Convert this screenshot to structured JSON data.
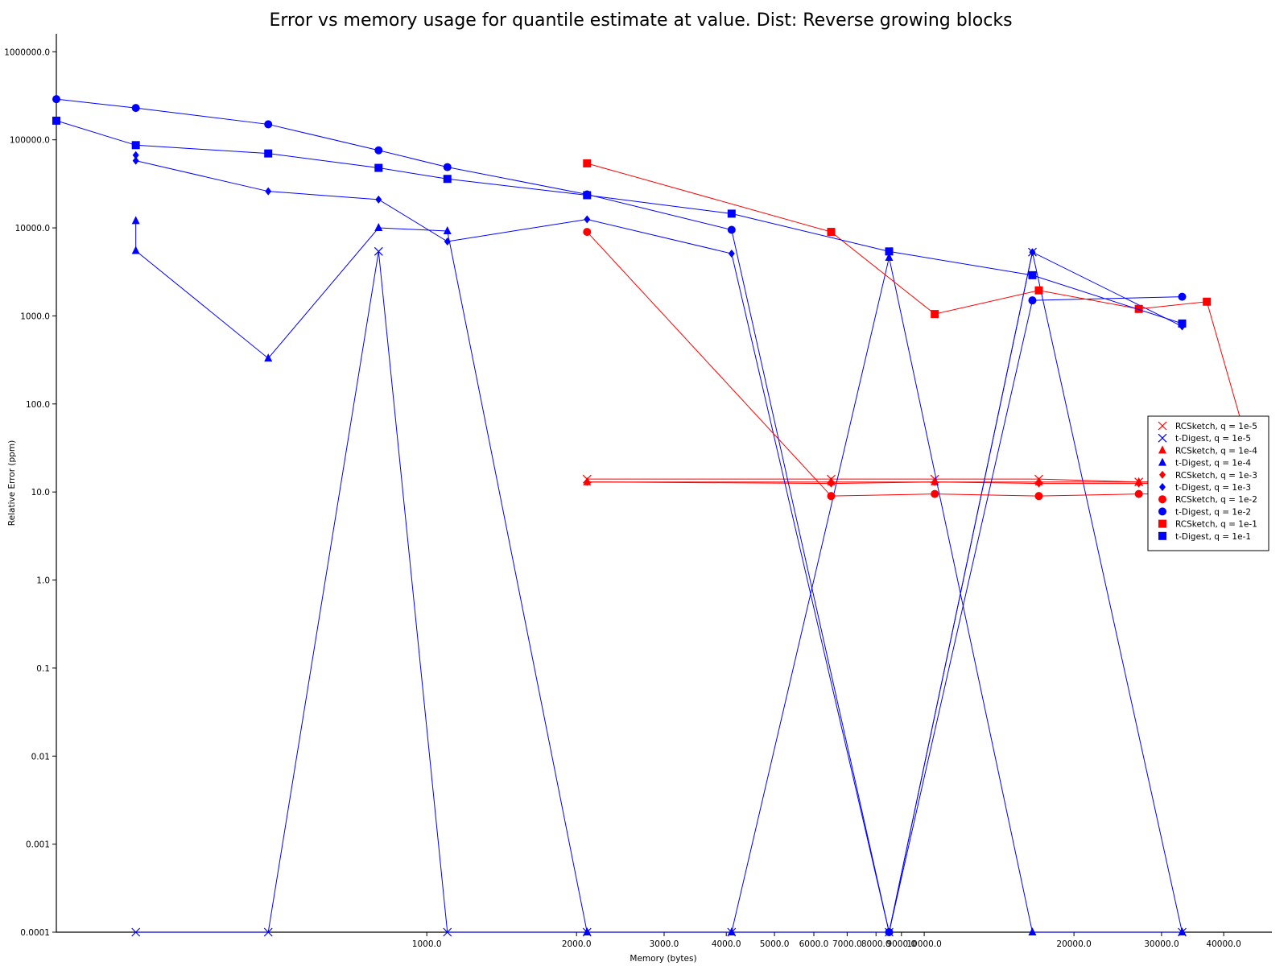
{
  "chart_data": {
    "type": "line",
    "title": "Error vs memory usage for quantile estimate at value. Dist: Reverse growing blocks",
    "xlabel": "Memory (bytes)",
    "ylabel": "Relative Error (ppm)",
    "xscale": "log",
    "yscale": "log",
    "xlim": [
      180,
      50000
    ],
    "ylim": [
      0.0001,
      1600000
    ],
    "x_ticks": [
      {
        "value": 1000,
        "label": "1000.0"
      },
      {
        "value": 2000,
        "label": "2000.0"
      },
      {
        "value": 3000,
        "label": "3000.0"
      },
      {
        "value": 4000,
        "label": "4000.0"
      },
      {
        "value": 5000,
        "label": "5000.0"
      },
      {
        "value": 6000,
        "label": "6000.0"
      },
      {
        "value": 7000,
        "label": "7000.0"
      },
      {
        "value": 8000,
        "label": "8000.0"
      },
      {
        "value": 9000,
        "label": "9000.0"
      },
      {
        "value": 10000,
        "label": "10000.0"
      },
      {
        "value": 20000,
        "label": "20000.0"
      },
      {
        "value": 30000,
        "label": "30000.0"
      },
      {
        "value": 40000,
        "label": "40000.0"
      }
    ],
    "y_ticks": [
      {
        "value": 0.0001,
        "label": "0.0001"
      },
      {
        "value": 0.001,
        "label": "0.001"
      },
      {
        "value": 0.01,
        "label": "0.01"
      },
      {
        "value": 0.1,
        "label": "0.1"
      },
      {
        "value": 1,
        "label": "1.0"
      },
      {
        "value": 10,
        "label": "10.0"
      },
      {
        "value": 100,
        "label": "100.0"
      },
      {
        "value": 1000,
        "label": "1000.0"
      },
      {
        "value": 10000,
        "label": "10000.0"
      },
      {
        "value": 100000,
        "label": "100000.0"
      },
      {
        "value": 1000000,
        "label": "1000000.0"
      }
    ],
    "legend_position": "right",
    "series": [
      {
        "name": "RCSketch, q = 1e-5",
        "color": "#ff0000",
        "marker": "x",
        "x": [
          2100,
          6500,
          10500,
          17000,
          27000,
          37000,
          48000
        ],
        "y": [
          14,
          14,
          14,
          14,
          13,
          13,
          13
        ]
      },
      {
        "name": "t-Digest, q = 1e-5",
        "color": "#0000ff",
        "marker": "x",
        "x": [
          260,
          480,
          800,
          1100,
          2100,
          4100,
          8500,
          16500,
          33000
        ],
        "y": [
          0.0001,
          0.0001,
          5400,
          0.0001,
          0.0001,
          0.0001,
          0.0001,
          5300,
          0.0001
        ]
      },
      {
        "name": "RCSketch, q = 1e-4",
        "color": "#ff0000",
        "marker": "triangle",
        "x": [
          2100,
          6500,
          10500,
          17000,
          27000,
          37000,
          48000
        ],
        "y": [
          13,
          13,
          13,
          13,
          13,
          13,
          13
        ]
      },
      {
        "name": "t-Digest, q = 1e-4",
        "color": "#0000ff",
        "marker": "triangle",
        "x": [
          260,
          260,
          480,
          800,
          1100,
          2100,
          4100,
          8500,
          16500,
          33000
        ],
        "y": [
          12000,
          5500,
          330,
          10000,
          9200,
          0.0001,
          0.0001,
          4600,
          0.0001,
          0.0001
        ]
      },
      {
        "name": "RCSketch, q = 1e-3",
        "color": "#ff0000",
        "marker": "diamond",
        "x": [
          2100,
          6500,
          10500,
          17000,
          27000,
          37000,
          48000
        ],
        "y": [
          13,
          12.5,
          13,
          12.5,
          12.5,
          12.5,
          13
        ]
      },
      {
        "name": "t-Digest, q = 1e-3",
        "color": "#0000ff",
        "marker": "diamond",
        "x": [
          260,
          260,
          480,
          800,
          1100,
          2100,
          4100,
          8500,
          16500,
          33000
        ],
        "y": [
          67000,
          58000,
          26000,
          21000,
          7000,
          12500,
          5100,
          0.0001,
          5300,
          760
        ]
      },
      {
        "name": "RCSketch, q = 1e-2",
        "color": "#ff0000",
        "marker": "circle",
        "x": [
          2100,
          6500,
          10500,
          17000,
          27000,
          48000
        ],
        "y": [
          9000,
          9,
          9.5,
          9,
          9.5,
          9.5
        ]
      },
      {
        "name": "t-Digest, q = 1e-2",
        "color": "#0000ff",
        "marker": "circle",
        "x": [
          180,
          260,
          480,
          800,
          1100,
          2100,
          4100,
          8500,
          16500,
          33000
        ],
        "y": [
          290000,
          230000,
          150000,
          76000,
          49000,
          24000,
          9500,
          0.0001,
          1500,
          1650
        ]
      },
      {
        "name": "RCSketch, q = 1e-1",
        "color": "#ff0000",
        "marker": "square",
        "x": [
          2100,
          6500,
          10500,
          17000,
          27000,
          37000,
          48000
        ],
        "y": [
          54000,
          9000,
          1050,
          1950,
          1200,
          1450,
          8.5
        ]
      },
      {
        "name": "t-Digest, q = 1e-1",
        "color": "#0000ff",
        "marker": "square",
        "x": [
          180,
          260,
          480,
          800,
          1100,
          2100,
          4100,
          8500,
          16500,
          33000
        ],
        "y": [
          165000,
          87000,
          70000,
          48000,
          36000,
          23500,
          14500,
          5400,
          2900,
          820
        ]
      }
    ]
  }
}
